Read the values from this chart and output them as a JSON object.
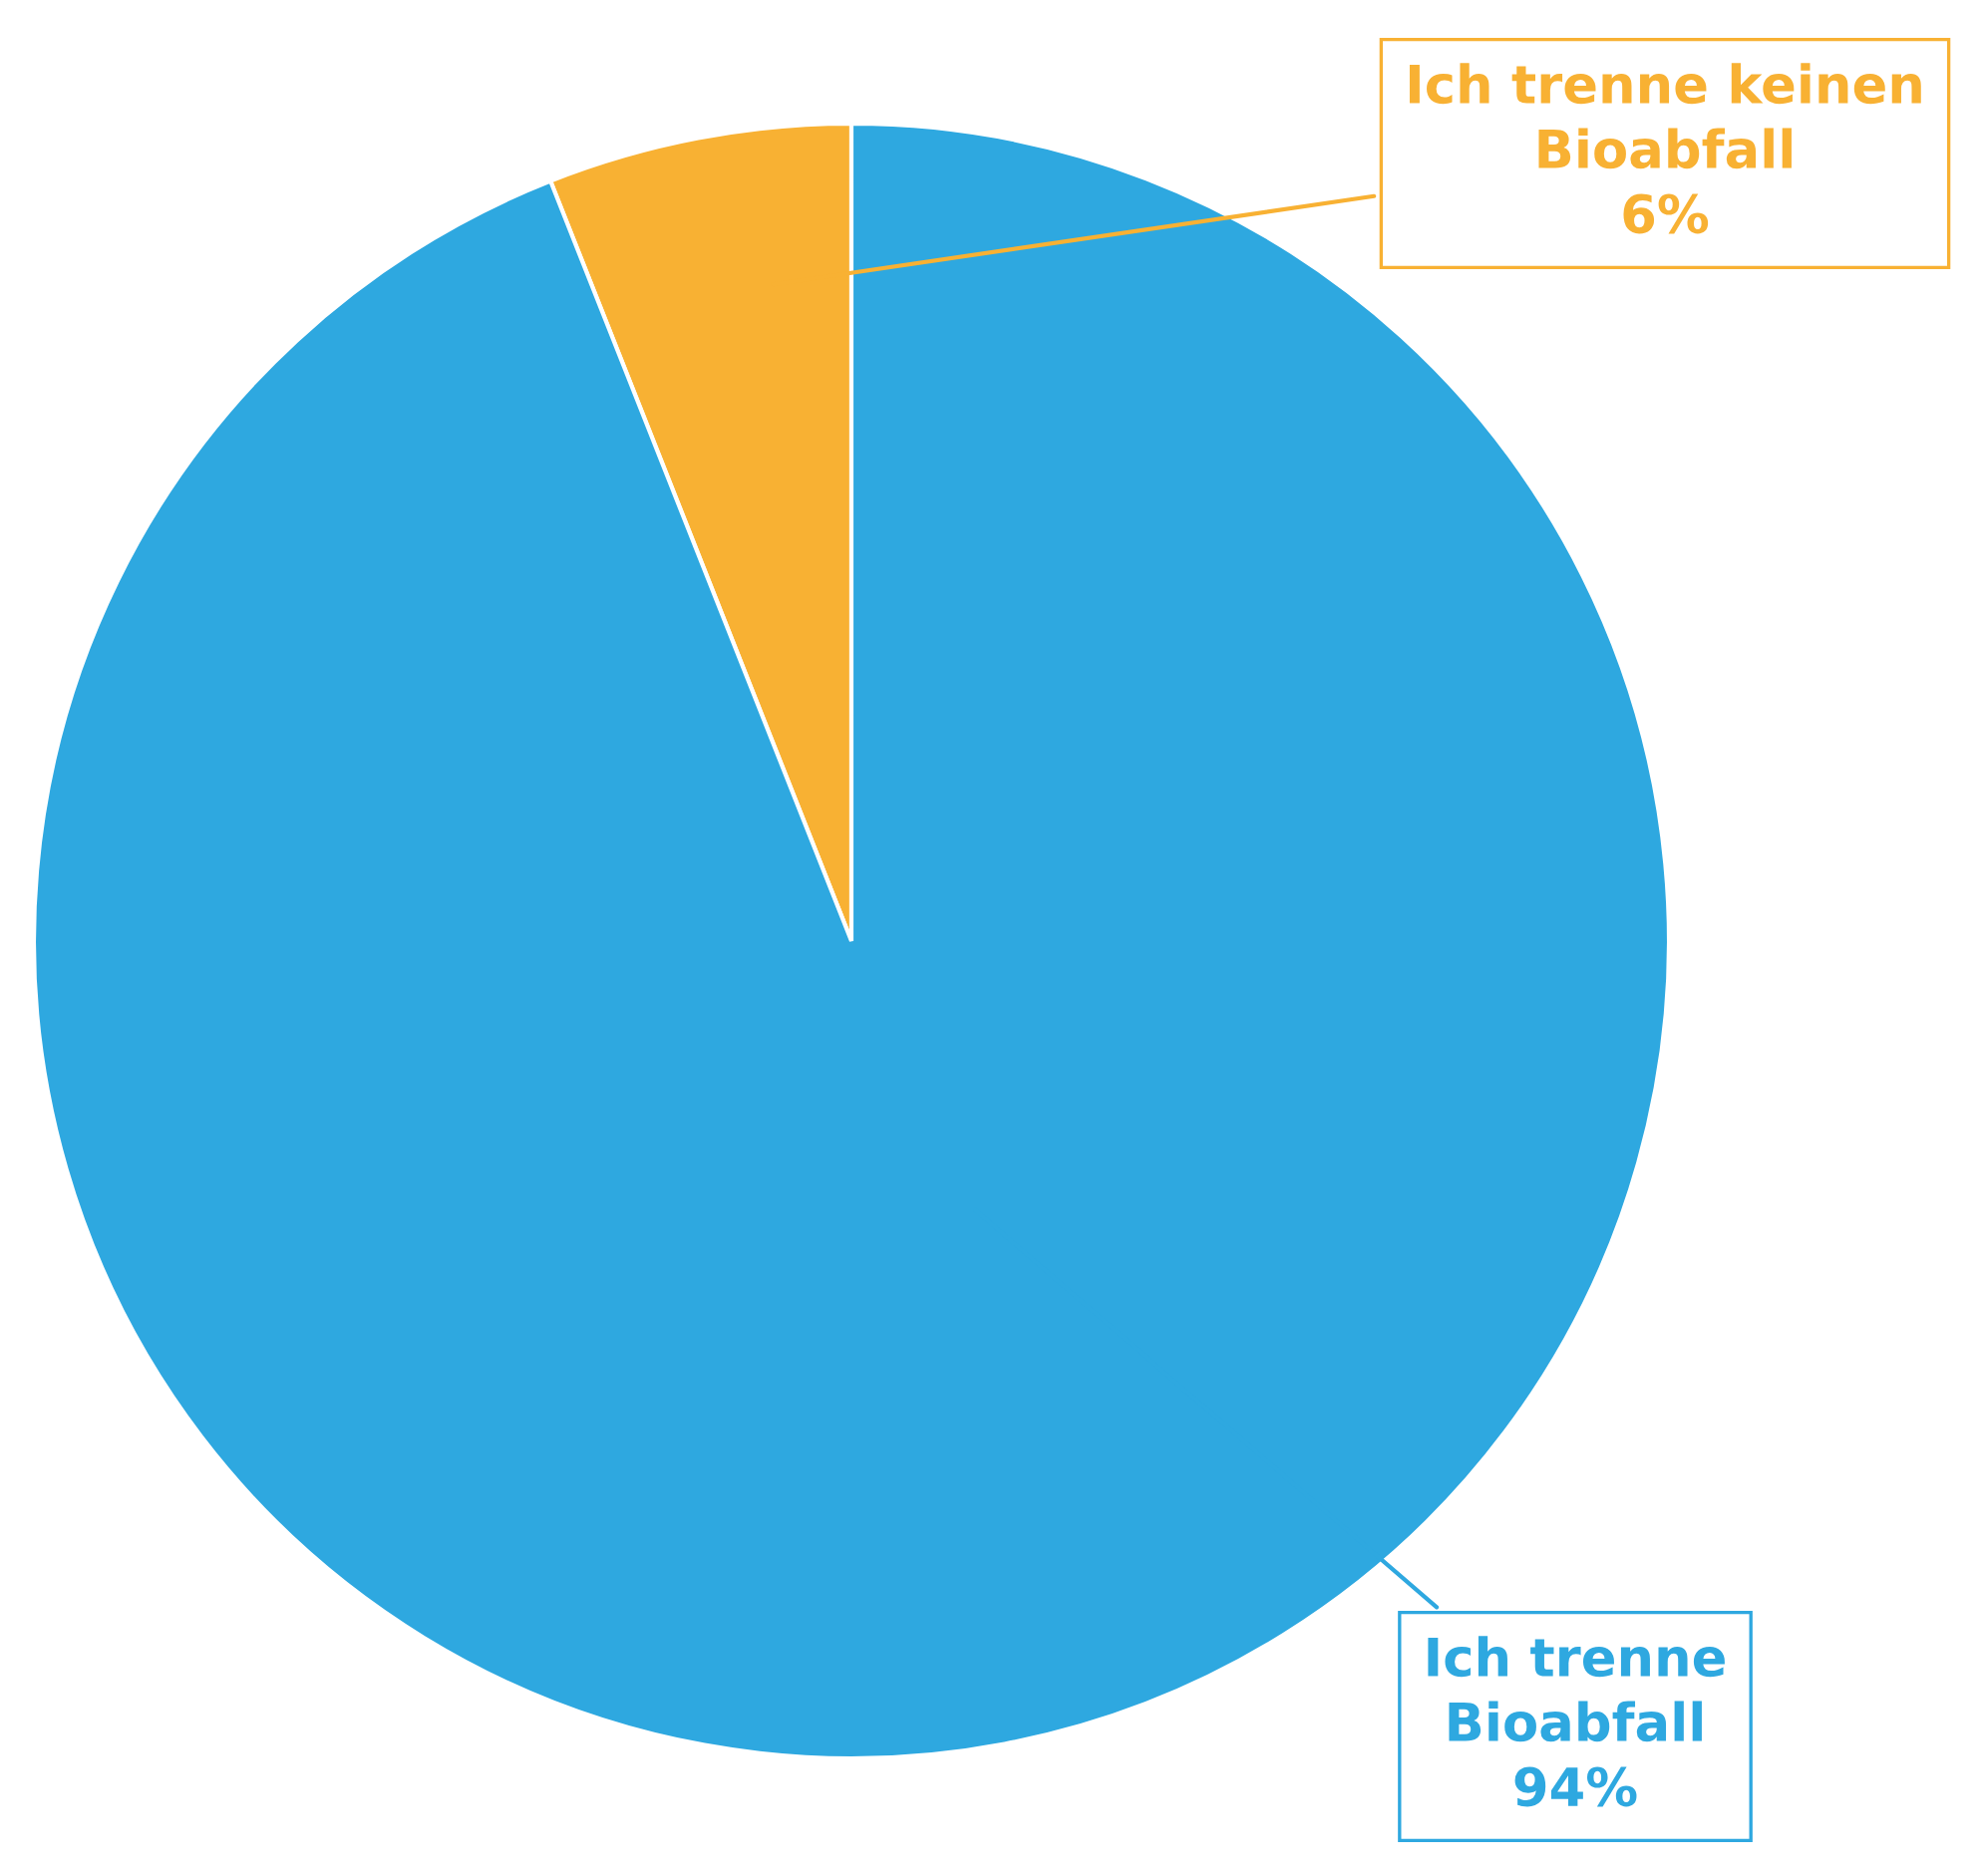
{
  "chart_data": {
    "type": "pie",
    "categories": [
      "Ich trenne keinen Bioabfall",
      "Ich trenne Bioabfall"
    ],
    "values": [
      6,
      94
    ],
    "colors": [
      "#f8b133",
      "#2ea8e0"
    ],
    "value_labels": [
      "6%",
      "94%"
    ]
  }
}
